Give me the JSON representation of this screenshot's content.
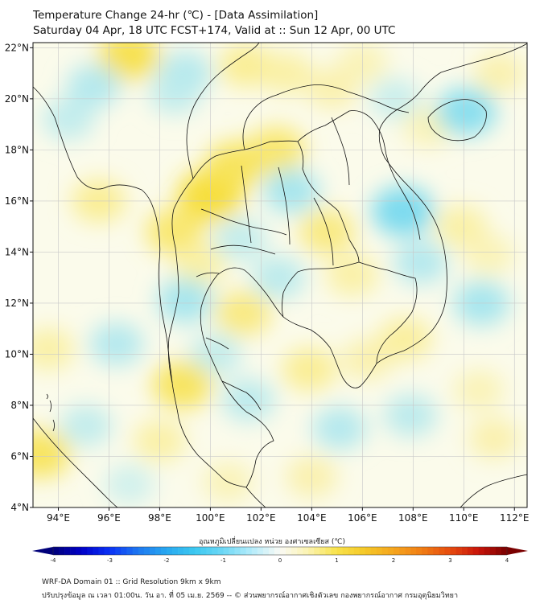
{
  "title": {
    "line1": "Temperature Change 24-hr (℃) - [Data Assimilation]",
    "line2": "Saturday 04 Apr, 18 UTC FCST+174, Valid at :: Sun 12 Apr, 00 UTC"
  },
  "map": {
    "lon_range": [
      93,
      112.5
    ],
    "lat_range": [
      4,
      22.2
    ],
    "lon_ticks": [
      {
        "value": 94,
        "label": "94°E"
      },
      {
        "value": 96,
        "label": "96°E"
      },
      {
        "value": 98,
        "label": "98°E"
      },
      {
        "value": 100,
        "label": "100°E"
      },
      {
        "value": 102,
        "label": "102°E"
      },
      {
        "value": 104,
        "label": "104°E"
      },
      {
        "value": 106,
        "label": "106°E"
      },
      {
        "value": 108,
        "label": "108°E"
      },
      {
        "value": 110,
        "label": "110°E"
      },
      {
        "value": 112,
        "label": "112°E"
      }
    ],
    "lat_ticks": [
      {
        "value": 4,
        "label": "4°N"
      },
      {
        "value": 6,
        "label": "6°N"
      },
      {
        "value": 8,
        "label": "8°N"
      },
      {
        "value": 10,
        "label": "10°N"
      },
      {
        "value": 12,
        "label": "12°N"
      },
      {
        "value": 14,
        "label": "14°N"
      },
      {
        "value": 16,
        "label": "16°N"
      },
      {
        "value": 18,
        "label": "18°N"
      },
      {
        "value": 20,
        "label": "20°N"
      },
      {
        "value": 22,
        "label": "22°N"
      }
    ],
    "field_colors": {
      "cold": "#5fd3f0",
      "neutral": "#fbfbeb",
      "warm": "#f6dc2a"
    },
    "field_blobs": [
      {
        "lon": 96.8,
        "lat": 21.7,
        "value": 0.9
      },
      {
        "lon": 95.4,
        "lat": 20.5,
        "value": -0.5
      },
      {
        "lon": 94.4,
        "lat": 19.2,
        "value": -0.4
      },
      {
        "lon": 99.0,
        "lat": 21.0,
        "value": -0.5
      },
      {
        "lon": 98.6,
        "lat": 20.2,
        "value": -0.4
      },
      {
        "lon": 101.4,
        "lat": 21.3,
        "value": 0.5
      },
      {
        "lon": 103.0,
        "lat": 21.0,
        "value": 0.4
      },
      {
        "lon": 104.8,
        "lat": 20.4,
        "value": 0.35
      },
      {
        "lon": 106.0,
        "lat": 21.4,
        "value": 0.3
      },
      {
        "lon": 107.3,
        "lat": 20.0,
        "value": -0.35
      },
      {
        "lon": 108.6,
        "lat": 18.9,
        "value": 0.3
      },
      {
        "lon": 110.1,
        "lat": 19.5,
        "value": -0.8
      },
      {
        "lon": 111.4,
        "lat": 21.0,
        "value": 0.35
      },
      {
        "lon": 100.0,
        "lat": 16.2,
        "value": 1.1
      },
      {
        "lon": 101.0,
        "lat": 17.4,
        "value": 0.8
      },
      {
        "lon": 102.6,
        "lat": 18.0,
        "value": 0.7
      },
      {
        "lon": 98.6,
        "lat": 14.8,
        "value": 0.7
      },
      {
        "lon": 99.6,
        "lat": 13.5,
        "value": 0.4
      },
      {
        "lon": 95.6,
        "lat": 16.0,
        "value": 0.5
      },
      {
        "lon": 103.2,
        "lat": 16.4,
        "value": -0.6
      },
      {
        "lon": 101.2,
        "lat": 14.5,
        "value": -0.4
      },
      {
        "lon": 102.7,
        "lat": 13.0,
        "value": -0.45
      },
      {
        "lon": 104.6,
        "lat": 14.8,
        "value": 0.6
      },
      {
        "lon": 105.6,
        "lat": 13.1,
        "value": 0.4
      },
      {
        "lon": 107.6,
        "lat": 15.6,
        "value": -0.9
      },
      {
        "lon": 108.3,
        "lat": 13.6,
        "value": -0.5
      },
      {
        "lon": 109.9,
        "lat": 15.0,
        "value": 0.4
      },
      {
        "lon": 111.0,
        "lat": 13.9,
        "value": 0.3
      },
      {
        "lon": 110.7,
        "lat": 12.0,
        "value": -0.6
      },
      {
        "lon": 99.0,
        "lat": 12.1,
        "value": -0.6
      },
      {
        "lon": 101.3,
        "lat": 11.6,
        "value": 0.6
      },
      {
        "lon": 100.2,
        "lat": 10.0,
        "value": -0.4
      },
      {
        "lon": 98.9,
        "lat": 8.8,
        "value": 0.8
      },
      {
        "lon": 96.3,
        "lat": 10.4,
        "value": -0.5
      },
      {
        "lon": 93.6,
        "lat": 10.2,
        "value": 0.4
      },
      {
        "lon": 95.1,
        "lat": 7.2,
        "value": -0.4
      },
      {
        "lon": 93.3,
        "lat": 6.1,
        "value": 0.8
      },
      {
        "lon": 98.0,
        "lat": 6.6,
        "value": 0.4
      },
      {
        "lon": 101.5,
        "lat": 8.2,
        "value": -0.45
      },
      {
        "lon": 103.9,
        "lat": 9.4,
        "value": 0.5
      },
      {
        "lon": 106.2,
        "lat": 9.8,
        "value": 0.35
      },
      {
        "lon": 107.7,
        "lat": 10.6,
        "value": 0.45
      },
      {
        "lon": 105.1,
        "lat": 7.1,
        "value": -0.5
      },
      {
        "lon": 104.0,
        "lat": 5.2,
        "value": 0.35
      },
      {
        "lon": 107.9,
        "lat": 7.6,
        "value": -0.45
      },
      {
        "lon": 110.6,
        "lat": 8.6,
        "value": 0.3
      },
      {
        "lon": 111.2,
        "lat": 6.7,
        "value": 0.35
      },
      {
        "lon": 96.8,
        "lat": 4.9,
        "value": -0.3
      },
      {
        "lon": 100.7,
        "lat": 5.0,
        "value": 0.3
      }
    ]
  },
  "colorbar": {
    "title": "อุณหภูมิเปลี่ยนแปลง หน่วย องศาเซลเซียส (℃)",
    "min": -4,
    "max": 4,
    "ticks": [
      {
        "value": -4,
        "label": "-4"
      },
      {
        "value": -3,
        "label": "-3"
      },
      {
        "value": -2,
        "label": "-2"
      },
      {
        "value": -1,
        "label": "-1"
      },
      {
        "value": 0,
        "label": "0"
      },
      {
        "value": 1,
        "label": "1"
      },
      {
        "value": 2,
        "label": "2"
      },
      {
        "value": 3,
        "label": "3"
      },
      {
        "value": 4,
        "label": "4"
      }
    ],
    "stops": [
      {
        "value": -4,
        "color": "#00007a"
      },
      {
        "value": -3.5,
        "color": "#0000c8"
      },
      {
        "value": -3,
        "color": "#0a32f5"
      },
      {
        "value": -2.5,
        "color": "#1e78f0"
      },
      {
        "value": -2,
        "color": "#28a8f0"
      },
      {
        "value": -1.5,
        "color": "#3cc8f0"
      },
      {
        "value": -1,
        "color": "#6ed8f5"
      },
      {
        "value": -0.5,
        "color": "#b4ecfa"
      },
      {
        "value": 0,
        "color": "#fafaf5"
      },
      {
        "value": 0.5,
        "color": "#fbf3b0"
      },
      {
        "value": 1,
        "color": "#f8e24a"
      },
      {
        "value": 1.5,
        "color": "#f5c828"
      },
      {
        "value": 2,
        "color": "#f5a51e"
      },
      {
        "value": 2.5,
        "color": "#f07d14"
      },
      {
        "value": 3,
        "color": "#e64b0f"
      },
      {
        "value": 3.5,
        "color": "#c8140a"
      },
      {
        "value": 4,
        "color": "#7a0000"
      }
    ]
  },
  "footer": {
    "line1": "WRF-DA Domain 01 :: Grid Resolution 9km x 9km",
    "line2": "ปรับปรุงข้อมูล ณ เวลา 01:00น. วัน อา. ที่ 05 เม.ย. 2569 -- © ส่วนพยากรณ์อากาศเชิงตัวเลข กองพยากรณ์อากาศ กรมอุตุนิยมวิทยา"
  }
}
